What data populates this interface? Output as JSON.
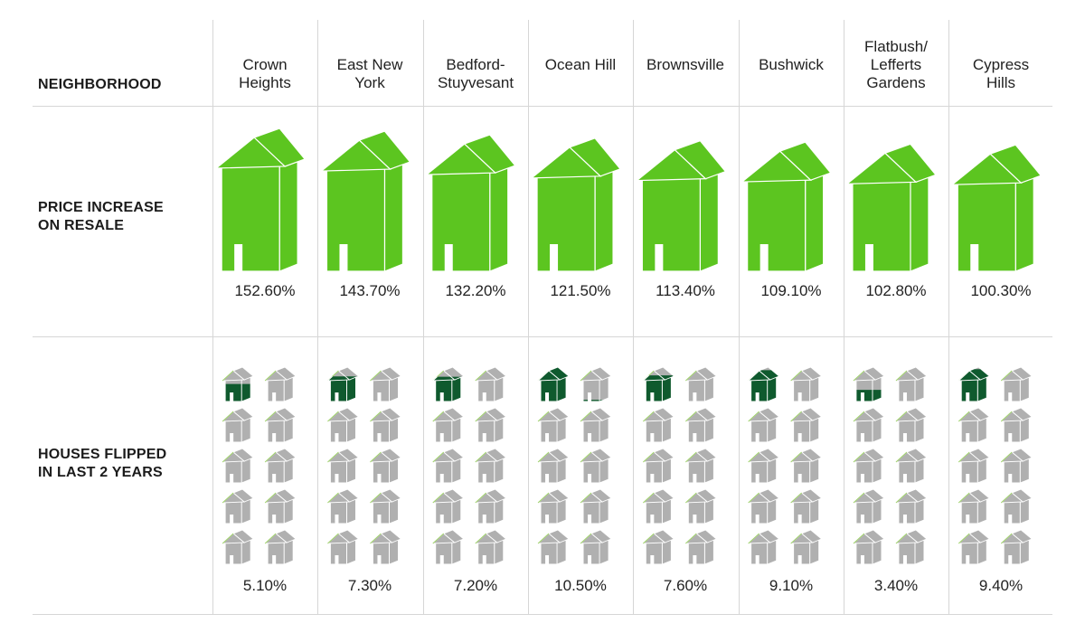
{
  "header": {
    "neighborhood_label": "NEIGHBORHOOD",
    "price_label": "PRICE INCREASE\nON RESALE",
    "flipped_label": "HOUSES FLIPPED\nIN LAST 2 YEARS"
  },
  "colors": {
    "price_house": "#5cc520",
    "price_house_edge": "#ffffff",
    "flip_house_gray": "#b0b0b0",
    "flip_house_dark": "#0f5a2e",
    "flip_house_roof_tint": "#9fd26a",
    "gridline": "#d6d6d6"
  },
  "chart_data": {
    "type": "table",
    "columns": [
      "NEIGHBORHOOD",
      "PRICE INCREASE ON RESALE",
      "HOUSES FLIPPED IN LAST 2 YEARS"
    ],
    "rows": [
      {
        "neighborhood": "Crown\nHeights",
        "price_increase": 152.6,
        "price_label": "152.60%",
        "flipped": 5.1,
        "flipped_label": "5.10%"
      },
      {
        "neighborhood": "East New\nYork",
        "price_increase": 143.7,
        "price_label": "143.70%",
        "flipped": 7.3,
        "flipped_label": "7.30%"
      },
      {
        "neighborhood": "Bedford-\nStuyvesant",
        "price_increase": 132.2,
        "price_label": "132.20%",
        "flipped": 7.2,
        "flipped_label": "7.20%"
      },
      {
        "neighborhood": "Ocean Hill",
        "price_increase": 121.5,
        "price_label": "121.50%",
        "flipped": 10.5,
        "flipped_label": "10.50%"
      },
      {
        "neighborhood": "Brownsville",
        "price_increase": 113.4,
        "price_label": "113.40%",
        "flipped": 7.6,
        "flipped_label": "7.60%"
      },
      {
        "neighborhood": "Bushwick",
        "price_increase": 109.1,
        "price_label": "109.10%",
        "flipped": 9.1,
        "flipped_label": "9.10%"
      },
      {
        "neighborhood": "Flatbush/\nLefferts\nGardens",
        "price_increase": 102.8,
        "price_label": "102.80%",
        "flipped": 3.4,
        "flipped_label": "3.40%"
      },
      {
        "neighborhood": "Cypress\nHills",
        "price_increase": 100.3,
        "price_label": "100.30%",
        "flipped": 9.4,
        "flipped_label": "9.40%"
      }
    ],
    "flipped_icon_grid": {
      "columns": 2,
      "rows": 5,
      "percent_per_icon": 10
    }
  }
}
